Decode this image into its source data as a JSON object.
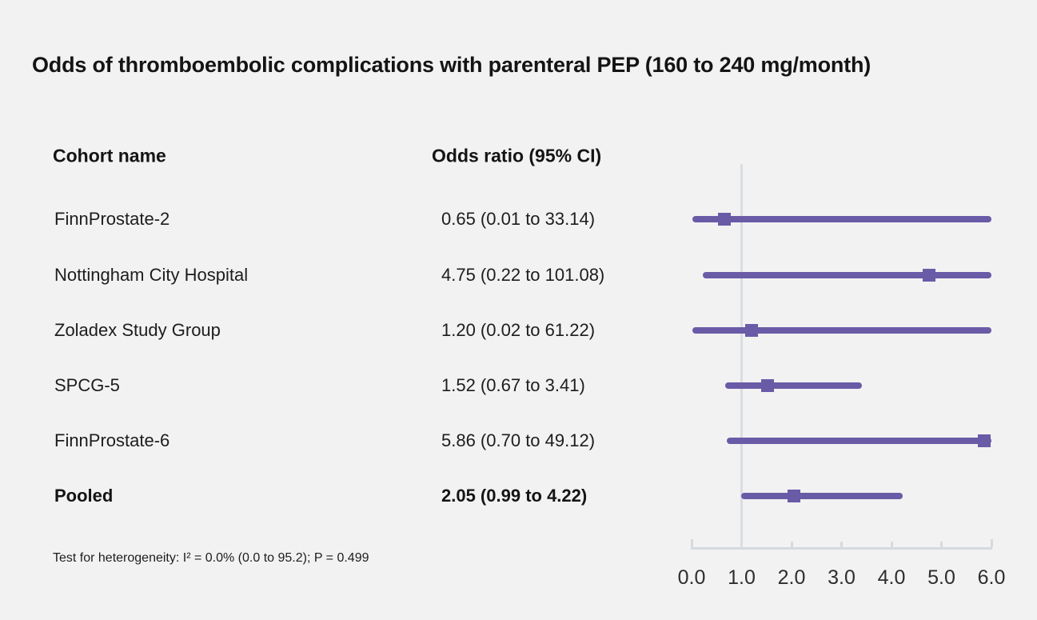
{
  "title": "Odds of thromboembolic complications with parenteral PEP (160 to 240 mg/month)",
  "table": {
    "header": {
      "cohort": "Cohort name",
      "or": "Odds ratio (95% CI)"
    },
    "rows": [
      {
        "cohort": "FinnProstate-2",
        "or_label": "0.65 (0.01 to 33.14)",
        "bold": false
      },
      {
        "cohort": "Nottingham City Hospital",
        "or_label": "4.75 (0.22 to 101.08)",
        "bold": false
      },
      {
        "cohort": "Zoladex Study Group",
        "or_label": "1.20 (0.02 to 61.22)",
        "bold": false
      },
      {
        "cohort": "SPCG-5",
        "or_label": "1.52 (0.67 to 3.41)",
        "bold": false
      },
      {
        "cohort": "FinnProstate-6",
        "or_label": "5.86 (0.70 to 49.12)",
        "bold": false
      },
      {
        "cohort": "Pooled",
        "or_label": "2.05 (0.99 to 4.22)",
        "bold": true
      }
    ]
  },
  "footnote": "Test for heterogeneity: I² = 0.0% (0.0 to 95.2); P = 0.499",
  "chart_data": {
    "type": "forest",
    "title": "Odds of thromboembolic complications with parenteral PEP (160 to 240 mg/month)",
    "xlim": [
      0.0,
      6.0
    ],
    "x_ticks": [
      0.0,
      1.0,
      2.0,
      3.0,
      4.0,
      5.0,
      6.0
    ],
    "x_tick_labels": [
      "0.0",
      "1.0",
      "2.0",
      "3.0",
      "4.0",
      "5.0",
      "6.0"
    ],
    "reference_line": 1.0,
    "series": [
      {
        "name": "FinnProstate-2",
        "estimate": 0.65,
        "ci_low": 0.01,
        "ci_high": 33.14,
        "pooled": false
      },
      {
        "name": "Nottingham City Hospital",
        "estimate": 4.75,
        "ci_low": 0.22,
        "ci_high": 101.08,
        "pooled": false
      },
      {
        "name": "Zoladex Study Group",
        "estimate": 1.2,
        "ci_low": 0.02,
        "ci_high": 61.22,
        "pooled": false
      },
      {
        "name": "SPCG-5",
        "estimate": 1.52,
        "ci_low": 0.67,
        "ci_high": 3.41,
        "pooled": false
      },
      {
        "name": "FinnProstate-6",
        "estimate": 5.86,
        "ci_low": 0.7,
        "ci_high": 49.12,
        "pooled": false
      },
      {
        "name": "Pooled",
        "estimate": 2.05,
        "ci_low": 0.99,
        "ci_high": 4.22,
        "pooled": true
      }
    ],
    "heterogeneity_note": "Test for heterogeneity: I² = 0.0% (0.0 to 95.2); P = 0.499",
    "colors": {
      "marker": "#6a5ba7",
      "ci_line": "#6a5ba7",
      "axis": "#d5dae1",
      "reference_line": "#d9dde3",
      "background": "#f2f2f2",
      "text": "#1a1a1a"
    },
    "legend": null,
    "grid": false
  }
}
